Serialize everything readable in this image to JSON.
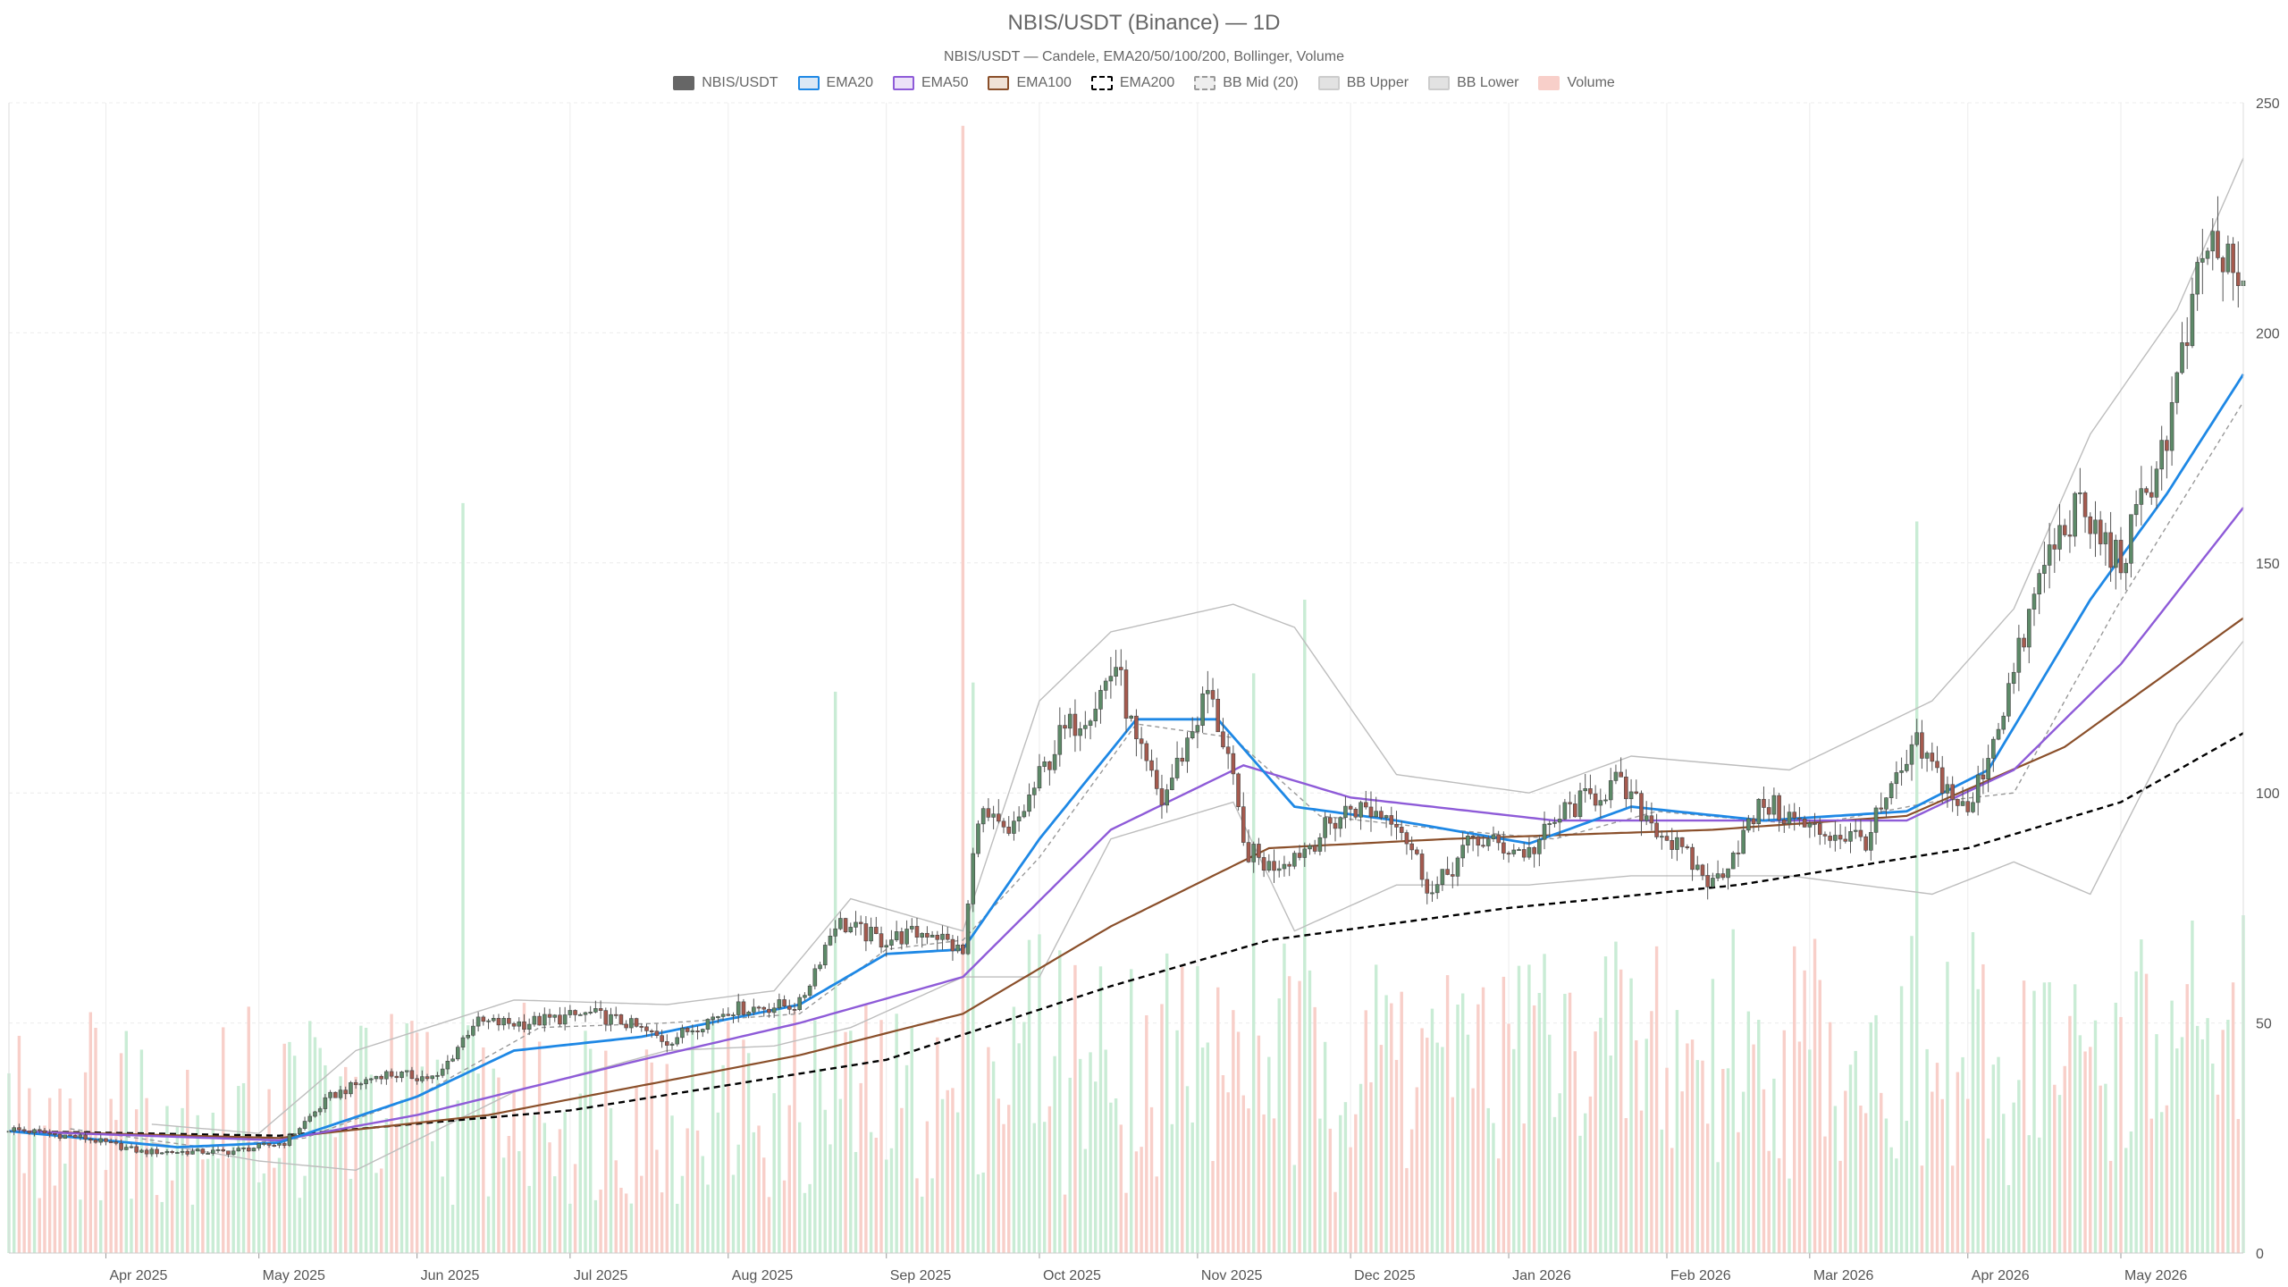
{
  "chart_data": {
    "type": "candlestick",
    "title": "NBIS/USDT (Binance) — 1D",
    "subtitle": "NBIS/USDT — Candele, EMA20/50/100/200, Bollinger, Volume",
    "legend": [
      {
        "label": "NBIS/USDT",
        "fill": "#666666",
        "stroke": "#666666",
        "dash": false
      },
      {
        "label": "EMA20",
        "fill": "#dbe8f5",
        "stroke": "#1e88e5",
        "dash": false
      },
      {
        "label": "EMA50",
        "fill": "#ece2f8",
        "stroke": "#8e5bd8",
        "dash": false
      },
      {
        "label": "EMA100",
        "fill": "#f0e2d6",
        "stroke": "#8a4f2a",
        "dash": false
      },
      {
        "label": "EMA200",
        "fill": "#ffffff",
        "stroke": "#000000",
        "dash": true
      },
      {
        "label": "BB Mid (20)",
        "fill": "#eeeeee",
        "stroke": "#999999",
        "dash": true
      },
      {
        "label": "BB Upper",
        "fill": "#e2e2e2",
        "stroke": "#cccccc",
        "dash": false
      },
      {
        "label": "BB Lower",
        "fill": "#e2e2e2",
        "stroke": "#cccccc",
        "dash": false
      },
      {
        "label": "Volume",
        "fill": "#f8cfc9",
        "stroke": "#f8cfc9",
        "dash": false
      }
    ],
    "x_range": [
      "2025-03-13",
      "2026-05-25"
    ],
    "x_ticks": [
      {
        "date": "2025-04-01",
        "label": "Apr 2025"
      },
      {
        "date": "2025-05-01",
        "label": "May 2025"
      },
      {
        "date": "2025-06-01",
        "label": "Jun 2025"
      },
      {
        "date": "2025-07-01",
        "label": "Jul 2025"
      },
      {
        "date": "2025-08-01",
        "label": "Aug 2025"
      },
      {
        "date": "2025-09-01",
        "label": "Sep 2025"
      },
      {
        "date": "2025-10-01",
        "label": "Oct 2025"
      },
      {
        "date": "2025-11-01",
        "label": "Nov 2025"
      },
      {
        "date": "2025-12-01",
        "label": "Dec 2025"
      },
      {
        "date": "2026-01-01",
        "label": "Jan 2026"
      },
      {
        "date": "2026-02-01",
        "label": "Feb 2026"
      },
      {
        "date": "2026-03-01",
        "label": "Mar 2026"
      },
      {
        "date": "2026-04-01",
        "label": "Apr 2026"
      },
      {
        "date": "2026-05-01",
        "label": "May 2026"
      }
    ],
    "y_right": {
      "min": 0,
      "max": 250,
      "ticks": [
        "0",
        "50",
        "100",
        "150",
        "200",
        "250"
      ]
    },
    "grid": true,
    "price_anchors": [
      {
        "date": "2025-03-13",
        "close": 27
      },
      {
        "date": "2025-03-28",
        "close": 25
      },
      {
        "date": "2025-04-08",
        "close": 22
      },
      {
        "date": "2025-04-25",
        "close": 22
      },
      {
        "date": "2025-05-06",
        "close": 24
      },
      {
        "date": "2025-05-15",
        "close": 34
      },
      {
        "date": "2025-05-25",
        "close": 39
      },
      {
        "date": "2025-06-05",
        "close": 38
      },
      {
        "date": "2025-06-12",
        "close": 50
      },
      {
        "date": "2025-06-22",
        "close": 50
      },
      {
        "date": "2025-07-05",
        "close": 52
      },
      {
        "date": "2025-07-12",
        "close": 50
      },
      {
        "date": "2025-07-20",
        "close": 46
      },
      {
        "date": "2025-08-01",
        "close": 53
      },
      {
        "date": "2025-08-15",
        "close": 54
      },
      {
        "date": "2025-08-22",
        "close": 72
      },
      {
        "date": "2025-08-31",
        "close": 68
      },
      {
        "date": "2025-09-10",
        "close": 70
      },
      {
        "date": "2025-09-16",
        "close": 65
      },
      {
        "date": "2025-09-19",
        "close": 96
      },
      {
        "date": "2025-09-25",
        "close": 90
      },
      {
        "date": "2025-10-05",
        "close": 112
      },
      {
        "date": "2025-10-12",
        "close": 120
      },
      {
        "date": "2025-10-16",
        "close": 128
      },
      {
        "date": "2025-10-20",
        "close": 110
      },
      {
        "date": "2025-10-25",
        "close": 98
      },
      {
        "date": "2025-11-03",
        "close": 122
      },
      {
        "date": "2025-11-07",
        "close": 108
      },
      {
        "date": "2025-11-10",
        "close": 88
      },
      {
        "date": "2025-11-15",
        "close": 84
      },
      {
        "date": "2025-11-22",
        "close": 88
      },
      {
        "date": "2025-12-01",
        "close": 97
      },
      {
        "date": "2025-12-10",
        "close": 95
      },
      {
        "date": "2025-12-17",
        "close": 78
      },
      {
        "date": "2025-12-25",
        "close": 90
      },
      {
        "date": "2026-01-05",
        "close": 87
      },
      {
        "date": "2026-01-12",
        "close": 96
      },
      {
        "date": "2026-01-22",
        "close": 102
      },
      {
        "date": "2026-02-03",
        "close": 88
      },
      {
        "date": "2026-02-10",
        "close": 80
      },
      {
        "date": "2026-02-20",
        "close": 98
      },
      {
        "date": "2026-03-01",
        "close": 92
      },
      {
        "date": "2026-03-12",
        "close": 90
      },
      {
        "date": "2026-03-22",
        "close": 110
      },
      {
        "date": "2026-04-01",
        "close": 95
      },
      {
        "date": "2026-04-10",
        "close": 126
      },
      {
        "date": "2026-04-16",
        "close": 150
      },
      {
        "date": "2026-04-22",
        "close": 162
      },
      {
        "date": "2026-05-01",
        "close": 150
      },
      {
        "date": "2026-05-10",
        "close": 178
      },
      {
        "date": "2026-05-18",
        "close": 220
      },
      {
        "date": "2026-05-25",
        "close": 208
      }
    ],
    "ema_anchors": {
      "EMA20": [
        {
          "date": "2025-03-13",
          "value": 26.5
        },
        {
          "date": "2025-04-15",
          "value": 23
        },
        {
          "date": "2025-05-05",
          "value": 24
        },
        {
          "date": "2025-06-01",
          "value": 34
        },
        {
          "date": "2025-06-20",
          "value": 44
        },
        {
          "date": "2025-07-15",
          "value": 47
        },
        {
          "date": "2025-08-15",
          "value": 54
        },
        {
          "date": "2025-09-01",
          "value": 65
        },
        {
          "date": "2025-09-16",
          "value": 66
        },
        {
          "date": "2025-10-01",
          "value": 90
        },
        {
          "date": "2025-10-20",
          "value": 116
        },
        {
          "date": "2025-11-05",
          "value": 116
        },
        {
          "date": "2025-11-20",
          "value": 97
        },
        {
          "date": "2025-12-10",
          "value": 94
        },
        {
          "date": "2026-01-05",
          "value": 89
        },
        {
          "date": "2026-01-25",
          "value": 97
        },
        {
          "date": "2026-02-20",
          "value": 94
        },
        {
          "date": "2026-03-20",
          "value": 96
        },
        {
          "date": "2026-04-05",
          "value": 105
        },
        {
          "date": "2026-04-25",
          "value": 142
        },
        {
          "date": "2026-05-10",
          "value": 165
        },
        {
          "date": "2026-05-25",
          "value": 191
        }
      ],
      "EMA50": [
        {
          "date": "2025-03-13",
          "value": 26.5
        },
        {
          "date": "2025-05-05",
          "value": 24.5
        },
        {
          "date": "2025-06-01",
          "value": 30
        },
        {
          "date": "2025-07-15",
          "value": 42
        },
        {
          "date": "2025-08-15",
          "value": 50
        },
        {
          "date": "2025-09-16",
          "value": 60
        },
        {
          "date": "2025-10-15",
          "value": 92
        },
        {
          "date": "2025-11-10",
          "value": 106
        },
        {
          "date": "2025-12-01",
          "value": 99
        },
        {
          "date": "2026-01-10",
          "value": 94
        },
        {
          "date": "2026-02-10",
          "value": 94
        },
        {
          "date": "2026-03-20",
          "value": 94
        },
        {
          "date": "2026-04-10",
          "value": 105
        },
        {
          "date": "2026-05-01",
          "value": 128
        },
        {
          "date": "2026-05-25",
          "value": 162
        }
      ],
      "EMA100": [
        {
          "date": "2025-03-13",
          "value": 26.5
        },
        {
          "date": "2025-05-05",
          "value": 25
        },
        {
          "date": "2025-06-15",
          "value": 30
        },
        {
          "date": "2025-08-15",
          "value": 43
        },
        {
          "date": "2025-09-16",
          "value": 52
        },
        {
          "date": "2025-10-15",
          "value": 71
        },
        {
          "date": "2025-11-15",
          "value": 88
        },
        {
          "date": "2025-12-20",
          "value": 90
        },
        {
          "date": "2026-02-10",
          "value": 92
        },
        {
          "date": "2026-03-20",
          "value": 95
        },
        {
          "date": "2026-04-20",
          "value": 110
        },
        {
          "date": "2026-05-25",
          "value": 138
        }
      ],
      "EMA200": [
        {
          "date": "2025-03-13",
          "value": 26.5
        },
        {
          "date": "2025-05-05",
          "value": 25.5
        },
        {
          "date": "2025-07-01",
          "value": 31
        },
        {
          "date": "2025-09-01",
          "value": 42
        },
        {
          "date": "2025-10-15",
          "value": 58
        },
        {
          "date": "2025-11-15",
          "value": 68
        },
        {
          "date": "2026-01-01",
          "value": 75
        },
        {
          "date": "2026-02-15",
          "value": 80
        },
        {
          "date": "2026-04-01",
          "value": 88
        },
        {
          "date": "2026-05-01",
          "value": 98
        },
        {
          "date": "2026-05-25",
          "value": 113
        }
      ]
    },
    "bollinger_mid_anchors": [
      {
        "date": "2025-03-25",
        "value": 27
      },
      {
        "date": "2025-04-20",
        "value": 23
      },
      {
        "date": "2025-05-10",
        "value": 25
      },
      {
        "date": "2025-06-01",
        "value": 34
      },
      {
        "date": "2025-06-25",
        "value": 49
      },
      {
        "date": "2025-07-20",
        "value": 50
      },
      {
        "date": "2025-08-15",
        "value": 52
      },
      {
        "date": "2025-09-01",
        "value": 66
      },
      {
        "date": "2025-09-16",
        "value": 68
      },
      {
        "date": "2025-10-01",
        "value": 86
      },
      {
        "date": "2025-10-20",
        "value": 115
      },
      {
        "date": "2025-11-08",
        "value": 112
      },
      {
        "date": "2025-11-25",
        "value": 95
      },
      {
        "date": "2025-12-20",
        "value": 92
      },
      {
        "date": "2026-01-10",
        "value": 90
      },
      {
        "date": "2026-01-30",
        "value": 96
      },
      {
        "date": "2026-03-01",
        "value": 93
      },
      {
        "date": "2026-03-25",
        "value": 98
      },
      {
        "date": "2026-04-10",
        "value": 100
      },
      {
        "date": "2026-04-30",
        "value": 140
      },
      {
        "date": "2026-05-25",
        "value": 185
      }
    ],
    "bollinger_upper_anchors": [
      {
        "date": "2025-04-10",
        "value": 28
      },
      {
        "date": "2025-05-01",
        "value": 26
      },
      {
        "date": "2025-05-20",
        "value": 44
      },
      {
        "date": "2025-06-20",
        "value": 55
      },
      {
        "date": "2025-07-20",
        "value": 54
      },
      {
        "date": "2025-08-10",
        "value": 57
      },
      {
        "date": "2025-08-25",
        "value": 77
      },
      {
        "date": "2025-09-16",
        "value": 70
      },
      {
        "date": "2025-10-01",
        "value": 120
      },
      {
        "date": "2025-10-15",
        "value": 135
      },
      {
        "date": "2025-11-08",
        "value": 141
      },
      {
        "date": "2025-11-20",
        "value": 136
      },
      {
        "date": "2025-12-10",
        "value": 104
      },
      {
        "date": "2026-01-05",
        "value": 100
      },
      {
        "date": "2026-01-25",
        "value": 108
      },
      {
        "date": "2026-02-25",
        "value": 105
      },
      {
        "date": "2026-03-25",
        "value": 120
      },
      {
        "date": "2026-04-10",
        "value": 140
      },
      {
        "date": "2026-04-25",
        "value": 178
      },
      {
        "date": "2026-05-12",
        "value": 205
      },
      {
        "date": "2026-05-25",
        "value": 238
      }
    ],
    "bollinger_lower_anchors": [
      {
        "date": "2025-04-10",
        "value": 24
      },
      {
        "date": "2025-05-01",
        "value": 20
      },
      {
        "date": "2025-05-20",
        "value": 18
      },
      {
        "date": "2025-06-20",
        "value": 35
      },
      {
        "date": "2025-07-20",
        "value": 44
      },
      {
        "date": "2025-08-10",
        "value": 45
      },
      {
        "date": "2025-08-25",
        "value": 49
      },
      {
        "date": "2025-09-16",
        "value": 60
      },
      {
        "date": "2025-10-01",
        "value": 60
      },
      {
        "date": "2025-10-15",
        "value": 90
      },
      {
        "date": "2025-11-08",
        "value": 98
      },
      {
        "date": "2025-11-20",
        "value": 70
      },
      {
        "date": "2025-12-10",
        "value": 80
      },
      {
        "date": "2026-01-05",
        "value": 80
      },
      {
        "date": "2026-01-25",
        "value": 82
      },
      {
        "date": "2026-02-25",
        "value": 82
      },
      {
        "date": "2026-03-25",
        "value": 78
      },
      {
        "date": "2026-04-10",
        "value": 85
      },
      {
        "date": "2026-04-25",
        "value": 78
      },
      {
        "date": "2026-05-12",
        "value": 115
      },
      {
        "date": "2026-05-25",
        "value": 133
      }
    ],
    "volume_note_values": {
      "max_scale": 250
    },
    "volume_spikes": [
      {
        "date": "2025-06-10",
        "value": 163
      },
      {
        "date": "2025-08-22",
        "value": 122
      },
      {
        "date": "2025-09-16",
        "value": 245
      },
      {
        "date": "2025-09-18",
        "value": 124
      },
      {
        "date": "2025-11-12",
        "value": 126
      },
      {
        "date": "2025-11-22",
        "value": 142
      },
      {
        "date": "2026-03-22",
        "value": 159
      }
    ],
    "colors": {
      "up": "#5d8a68",
      "down": "#a55a4e",
      "vol_up": "#c9ecd5",
      "vol_down": "#f8cfc9",
      "ema20": "#1e88e5",
      "ema50": "#8e5bd8",
      "ema100": "#8a4f2a",
      "ema200": "#000000",
      "bb_mid": "#999999",
      "bb_band": "#bdbdbd",
      "grid": "#ececec"
    }
  }
}
